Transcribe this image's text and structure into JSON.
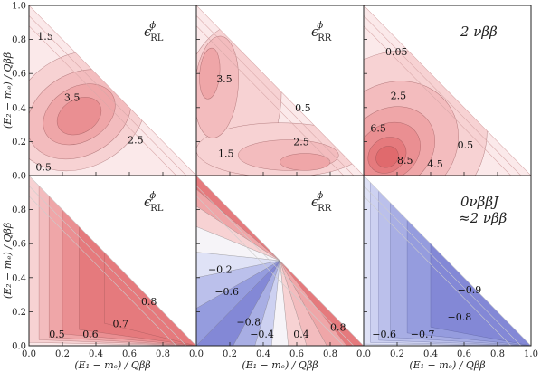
{
  "chart_data": {
    "type": "contour",
    "xlabel": "(E₁ − mₑ) / Qββ",
    "ylabel": "(E₂ − mₑ) / Qββ",
    "xlim": [
      0,
      1
    ],
    "ylim": [
      0,
      1
    ],
    "x_ticks": [
      "0.0",
      "0.2",
      "0.4",
      "0.6",
      "0.8"
    ],
    "x_ticks_last": [
      "0.0",
      "0.2",
      "0.4",
      "0.6",
      "0.8",
      "1.0"
    ],
    "y_ticks": [
      "0.0",
      "0.2",
      "0.4",
      "0.6",
      "0.8"
    ],
    "y_ticks_top": [
      "0.0",
      "0.2",
      "0.4",
      "0.6",
      "0.8",
      "1.0"
    ],
    "panels": [
      {
        "label_main": "ϵ",
        "label_sub": "RL",
        "label_sup": "ϕ",
        "row": 0,
        "col": 0,
        "palette": "red",
        "levels": [
          {
            "text": "1.5",
            "x": 0.05,
            "y": 0.82
          },
          {
            "text": "3.5",
            "x": 0.21,
            "y": 0.46
          },
          {
            "text": "2.5",
            "x": 0.59,
            "y": 0.21
          },
          {
            "text": "0.5",
            "x": 0.04,
            "y": 0.05
          }
        ]
      },
      {
        "label_main": "ϵ",
        "label_sub": "RR",
        "label_sup": "ϕ",
        "row": 0,
        "col": 1,
        "palette": "red",
        "levels": [
          {
            "text": "3.5",
            "x": 0.12,
            "y": 0.57
          },
          {
            "text": "0.5",
            "x": 0.59,
            "y": 0.4
          },
          {
            "text": "2.5",
            "x": 0.58,
            "y": 0.2
          },
          {
            "text": "1.5",
            "x": 0.13,
            "y": 0.13
          }
        ]
      },
      {
        "label_main": "2 νββ",
        "label_sub": "",
        "label_sup": "",
        "row": 0,
        "col": 2,
        "palette": "red",
        "levels": [
          {
            "text": "0.05",
            "x": 0.13,
            "y": 0.73
          },
          {
            "text": "2.5",
            "x": 0.16,
            "y": 0.47
          },
          {
            "text": "6.5",
            "x": 0.04,
            "y": 0.28
          },
          {
            "text": "8.5",
            "x": 0.2,
            "y": 0.09
          },
          {
            "text": "4.5",
            "x": 0.38,
            "y": 0.07
          },
          {
            "text": "0.5",
            "x": 0.56,
            "y": 0.18
          }
        ]
      },
      {
        "label_main": "ϵ",
        "label_sub": "RL",
        "label_sup": "ϕ",
        "row": 1,
        "col": 0,
        "palette": "red",
        "levels": [
          {
            "text": "0.8",
            "x": 0.67,
            "y": 0.26
          },
          {
            "text": "0.7",
            "x": 0.5,
            "y": 0.13
          },
          {
            "text": "0.6",
            "x": 0.32,
            "y": 0.07
          },
          {
            "text": "0.5",
            "x": 0.12,
            "y": 0.07
          }
        ]
      },
      {
        "label_main": "ϵ",
        "label_sub": "RR",
        "label_sup": "ϕ",
        "row": 1,
        "col": 1,
        "palette": "split",
        "levels": [
          {
            "text": "−0.2",
            "x": 0.07,
            "y": 0.45
          },
          {
            "text": "−0.6",
            "x": 0.11,
            "y": 0.32
          },
          {
            "text": "−0.8",
            "x": 0.24,
            "y": 0.14
          },
          {
            "text": "−0.4",
            "x": 0.32,
            "y": 0.07
          },
          {
            "text": "0.4",
            "x": 0.58,
            "y": 0.07
          },
          {
            "text": "0.8",
            "x": 0.8,
            "y": 0.11
          }
        ]
      },
      {
        "label_main": "0νββJ",
        "label_sub": "",
        "label_sup": "",
        "label_line2": "≈2 νββ",
        "row": 1,
        "col": 2,
        "palette": "blue",
        "levels": [
          {
            "text": "−0.9",
            "x": 0.56,
            "y": 0.33
          },
          {
            "text": "−0.8",
            "x": 0.5,
            "y": 0.17
          },
          {
            "text": "−0.7",
            "x": 0.28,
            "y": 0.07
          },
          {
            "text": "−0.6",
            "x": 0.05,
            "y": 0.07
          }
        ]
      }
    ]
  }
}
